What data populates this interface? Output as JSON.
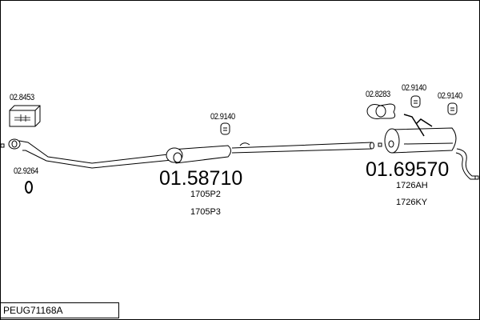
{
  "diagram_code": "PEUG71168A",
  "parts": {
    "mounting_kit": "02.8453",
    "gasket_front": "02.9264",
    "hanger_mid": "02.9140",
    "clamp_rear": "02.8283",
    "hanger_rear_1": "02.9140",
    "hanger_rear_2": "02.9140",
    "mid_section": {
      "number": "01.58710",
      "refs": [
        "1705P2",
        "1705P3"
      ]
    },
    "rear_section": {
      "number": "01.69570",
      "refs": [
        "1726AH",
        "1726KY"
      ]
    }
  }
}
